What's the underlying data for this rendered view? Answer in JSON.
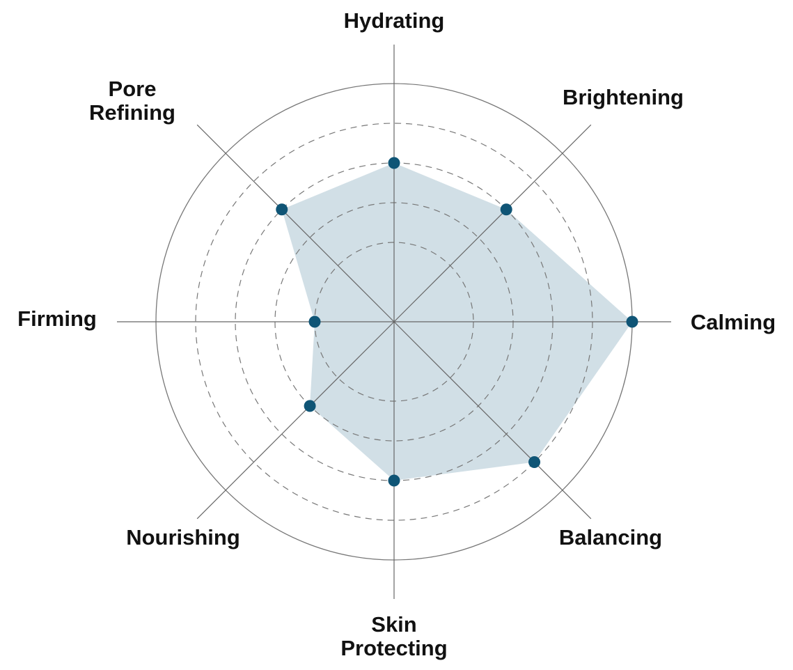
{
  "chart_data": {
    "type": "radar",
    "categories": [
      "Hydrating",
      "Brightening",
      "Calming",
      "Balancing",
      "Skin Protecting",
      "Nourishing",
      "Firming",
      "Pore Refining"
    ],
    "category_label_lines": [
      [
        "Hydrating"
      ],
      [
        "Brightening"
      ],
      [
        "Calming"
      ],
      [
        "Balancing"
      ],
      [
        "Skin",
        "Protecting"
      ],
      [
        "Nourishing"
      ],
      [
        "Firming"
      ],
      [
        "Pore",
        "Refining"
      ]
    ],
    "values": [
      4,
      4,
      6,
      5,
      4,
      3,
      2,
      4
    ],
    "rlim": [
      0,
      6
    ],
    "dashed_rings": [
      2,
      3,
      4,
      5
    ],
    "outer_ring": 6,
    "grid": true,
    "legend": "none",
    "colors": {
      "fill": "#d1dfe6",
      "point": "#0f5576",
      "axis": "#666666",
      "ring": "#777777",
      "label": "#111111"
    }
  }
}
